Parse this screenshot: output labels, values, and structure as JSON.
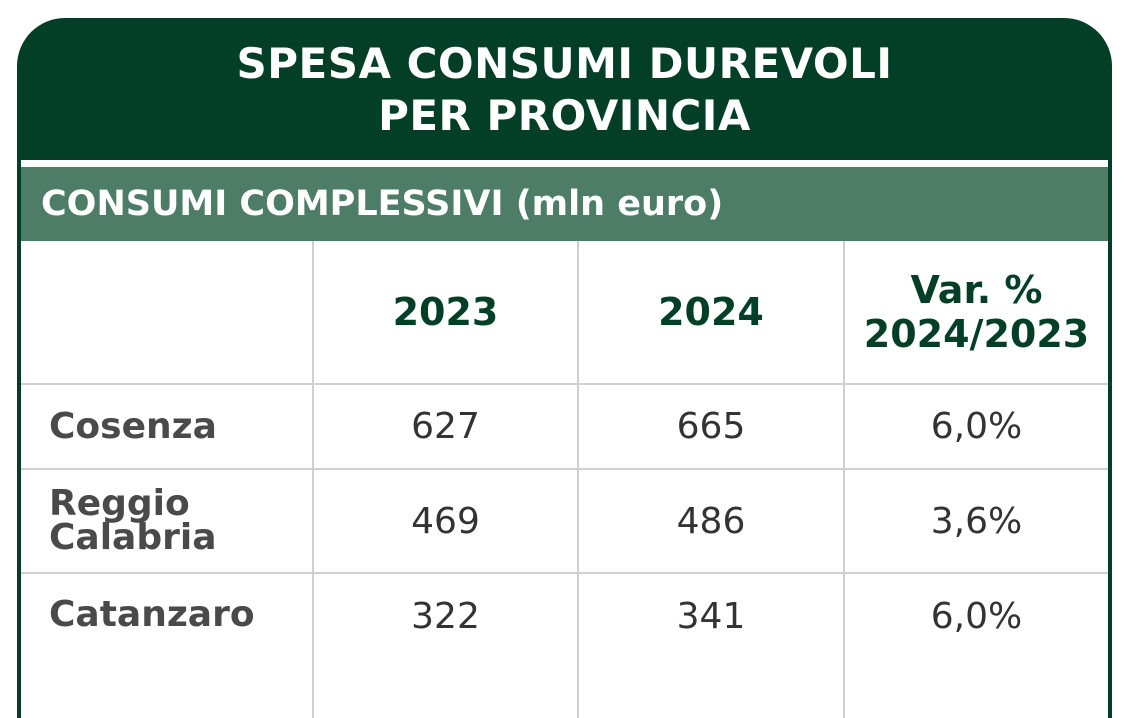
{
  "title": {
    "line1": "SPESA CONSUMI DUREVOLI",
    "line2": "PER PROVINCIA"
  },
  "subheader": "CONSUMI COMPLESSIVI (mln euro)",
  "columns": {
    "c2023": "2023",
    "c2024": "2024",
    "var_line1": "Var. %",
    "var_line2": "2024/2023"
  },
  "rows": [
    {
      "label_line1": "Cosenza",
      "label_line2": "",
      "v2023": "627",
      "v2024": "665",
      "var": "6,0%"
    },
    {
      "label_line1": "Reggio",
      "label_line2": "Calabria",
      "v2023": "469",
      "v2024": "486",
      "var": "3,6%"
    },
    {
      "label_line1": "Catanzaro",
      "label_line2": "",
      "v2023": "322",
      "v2024": "341",
      "var": "6,0%"
    }
  ],
  "colors": {
    "dark_green": "#023f26",
    "mid_green": "#4d7c67"
  }
}
